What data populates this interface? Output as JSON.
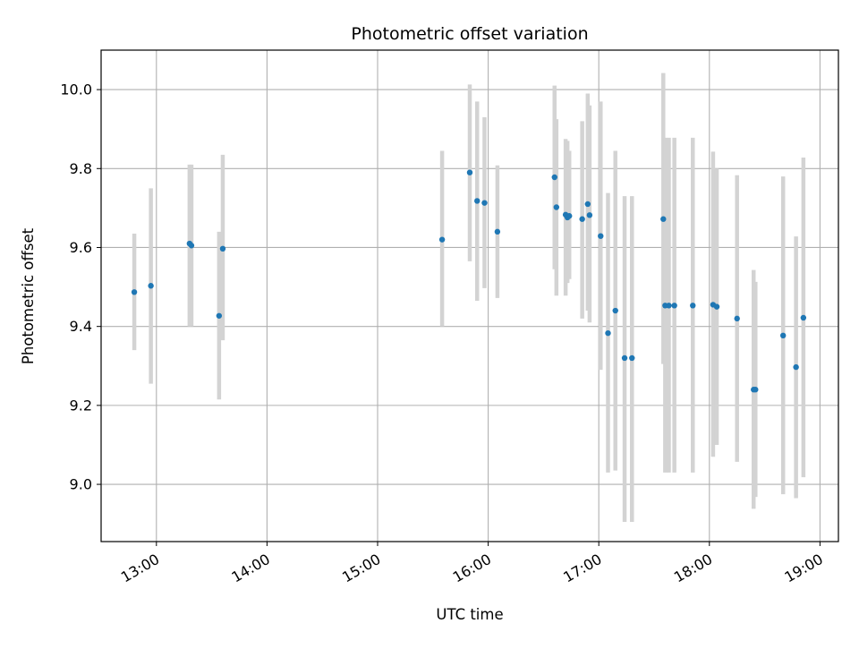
{
  "chart_data": {
    "type": "scatter",
    "title": "Photometric offset variation",
    "xlabel": "UTC time",
    "ylabel": "Photometric offset",
    "x_format": "time HH:MM",
    "xlim": [
      "12:30",
      "19:10"
    ],
    "ylim": [
      8.855,
      10.1
    ],
    "xticks": [
      "13:00",
      "14:00",
      "15:00",
      "16:00",
      "17:00",
      "18:00",
      "19:00"
    ],
    "yticks": [
      9.0,
      9.2,
      9.4,
      9.6,
      9.8,
      10.0
    ],
    "grid": true,
    "point_color": "#1f77b4",
    "errorbar_color": "#d3d3d3",
    "points": [
      {
        "x": "12:48",
        "y": 9.487,
        "lo": 9.34,
        "hi": 9.635
      },
      {
        "x": "12:57",
        "y": 9.503,
        "lo": 9.255,
        "hi": 9.75
      },
      {
        "x": "13:18",
        "y": 9.61,
        "lo": 9.4,
        "hi": 9.81
      },
      {
        "x": "13:19",
        "y": 9.605,
        "lo": 9.4,
        "hi": 9.81
      },
      {
        "x": "13:34",
        "y": 9.427,
        "lo": 9.215,
        "hi": 9.64
      },
      {
        "x": "13:36",
        "y": 9.597,
        "lo": 9.365,
        "hi": 9.835
      },
      {
        "x": "15:35",
        "y": 9.62,
        "lo": 9.4,
        "hi": 9.845
      },
      {
        "x": "15:50",
        "y": 9.79,
        "lo": 9.565,
        "hi": 10.013
      },
      {
        "x": "15:54",
        "y": 9.718,
        "lo": 9.465,
        "hi": 9.97
      },
      {
        "x": "15:58",
        "y": 9.713,
        "lo": 9.497,
        "hi": 9.93
      },
      {
        "x": "16:05",
        "y": 9.64,
        "lo": 9.472,
        "hi": 9.808
      },
      {
        "x": "16:36",
        "y": 9.778,
        "lo": 9.545,
        "hi": 10.01
      },
      {
        "x": "16:37",
        "y": 9.702,
        "lo": 9.478,
        "hi": 9.925
      },
      {
        "x": "16:42",
        "y": 9.683,
        "lo": 9.478,
        "hi": 9.875
      },
      {
        "x": "16:43",
        "y": 9.676,
        "lo": 9.51,
        "hi": 9.87
      },
      {
        "x": "16:44",
        "y": 9.68,
        "lo": 9.52,
        "hi": 9.845
      },
      {
        "x": "16:51",
        "y": 9.672,
        "lo": 9.42,
        "hi": 9.92
      },
      {
        "x": "16:54",
        "y": 9.71,
        "lo": 9.44,
        "hi": 9.99
      },
      {
        "x": "16:55",
        "y": 9.682,
        "lo": 9.41,
        "hi": 9.96
      },
      {
        "x": "17:01",
        "y": 9.629,
        "lo": 9.29,
        "hi": 9.97
      },
      {
        "x": "17:05",
        "y": 9.383,
        "lo": 9.03,
        "hi": 9.738
      },
      {
        "x": "17:09",
        "y": 9.44,
        "lo": 9.035,
        "hi": 9.845
      },
      {
        "x": "17:14",
        "y": 9.32,
        "lo": 8.905,
        "hi": 9.73
      },
      {
        "x": "17:18",
        "y": 9.32,
        "lo": 8.905,
        "hi": 9.73
      },
      {
        "x": "17:35",
        "y": 9.672,
        "lo": 9.305,
        "hi": 10.042
      },
      {
        "x": "17:36",
        "y": 9.453,
        "lo": 9.03,
        "hi": 9.878
      },
      {
        "x": "17:38",
        "y": 9.453,
        "lo": 9.03,
        "hi": 9.878
      },
      {
        "x": "17:41",
        "y": 9.453,
        "lo": 9.03,
        "hi": 9.878
      },
      {
        "x": "17:51",
        "y": 9.453,
        "lo": 9.03,
        "hi": 9.878
      },
      {
        "x": "18:02",
        "y": 9.455,
        "lo": 9.07,
        "hi": 9.843
      },
      {
        "x": "18:04",
        "y": 9.45,
        "lo": 9.1,
        "hi": 9.8
      },
      {
        "x": "18:15",
        "y": 9.42,
        "lo": 9.057,
        "hi": 9.783
      },
      {
        "x": "18:24",
        "y": 9.24,
        "lo": 8.938,
        "hi": 9.543
      },
      {
        "x": "18:25",
        "y": 9.24,
        "lo": 8.968,
        "hi": 9.513
      },
      {
        "x": "18:40",
        "y": 9.377,
        "lo": 8.975,
        "hi": 9.78
      },
      {
        "x": "18:47",
        "y": 9.297,
        "lo": 8.965,
        "hi": 9.628
      },
      {
        "x": "18:51",
        "y": 9.422,
        "lo": 9.018,
        "hi": 9.828
      }
    ]
  }
}
